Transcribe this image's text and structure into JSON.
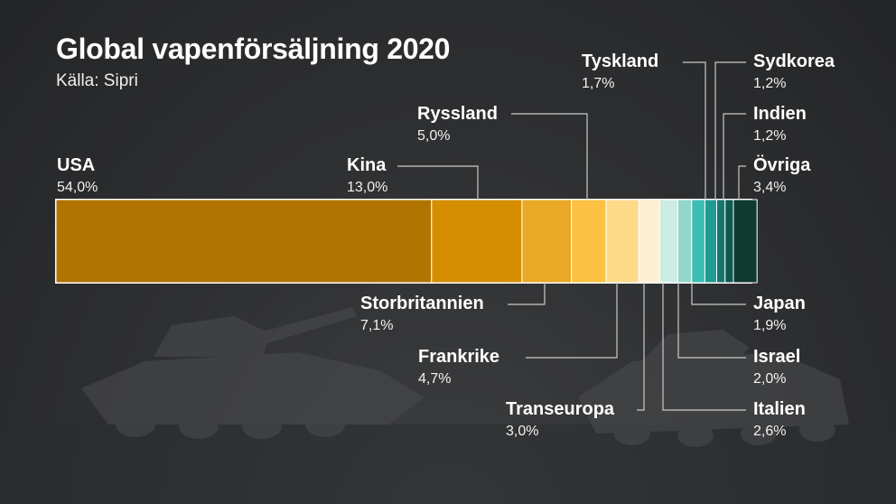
{
  "title": "Global vapenförsäljning 2020",
  "subtitle": "Källa: Sipri",
  "chart_data": {
    "type": "bar",
    "orientation": "horizontal-stacked",
    "title": "Global vapenförsäljning 2020",
    "subtitle": "Källa: Sipri",
    "unit": "%",
    "categories": [
      "USA",
      "Kina",
      "Storbritannien",
      "Ryssland",
      "Frankrike",
      "Transeuropa",
      "Italien",
      "Israel",
      "Japan",
      "Tyskland",
      "Sydkorea",
      "Indien",
      "Övriga"
    ],
    "values": [
      54.0,
      13.0,
      7.1,
      5.0,
      4.7,
      3.0,
      2.6,
      2.0,
      1.9,
      1.7,
      1.2,
      1.2,
      3.4
    ],
    "value_labels": [
      "54,0%",
      "13,0%",
      "7,1%",
      "5,0%",
      "4,7%",
      "3,0%",
      "2,6%",
      "2,0%",
      "1,9%",
      "1,7%",
      "1,2%",
      "1,2%",
      "3,4%"
    ],
    "colors": [
      "#b27400",
      "#d58e00",
      "#e9a826",
      "#fdc244",
      "#fdd98a",
      "#fdefd1",
      "#cdece1",
      "#93d6cb",
      "#3dbdb2",
      "#229a91",
      "#15766f",
      "#0c5a52",
      "#0f3a30"
    ],
    "label_positions": [
      "above",
      "above",
      "below-left",
      "above",
      "below-left",
      "below-left",
      "right",
      "right",
      "right",
      "right",
      "right",
      "right",
      "right"
    ],
    "xlim": [
      0,
      100
    ],
    "grid": false,
    "legend": "none"
  }
}
